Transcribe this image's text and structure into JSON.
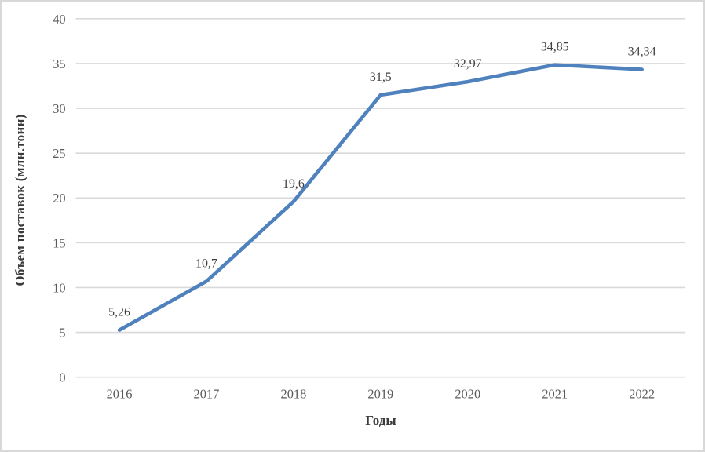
{
  "chart_data": {
    "type": "line",
    "title": "",
    "categories": [
      "2016",
      "2017",
      "2018",
      "2019",
      "2020",
      "2021",
      "2022"
    ],
    "series": [
      {
        "name": "Объем поставок",
        "values": [
          5.26,
          10.7,
          19.6,
          31.5,
          32.97,
          34.85,
          34.34
        ],
        "data_labels": [
          "5,26",
          "10,7",
          "19,6",
          "31,5",
          "32,97",
          "34,85",
          "34,34"
        ]
      }
    ],
    "xlabel": "Годы",
    "ylabel": "Объем поставок (млн.тонн)",
    "ylim": [
      0,
      40
    ],
    "yticks": [
      0,
      5,
      10,
      15,
      20,
      25,
      30,
      35,
      40
    ],
    "ytick_labels": [
      "0",
      "5",
      "10",
      "15",
      "20",
      "25",
      "30",
      "35",
      "40"
    ],
    "grid": "horizontal",
    "legend_position": "none"
  },
  "colors": {
    "line": "#4F81BD",
    "gridline": "#D9D9D9",
    "axis_line": "#D9D9D9",
    "tick_label": "#595959",
    "data_label": "#404040",
    "axis_title": "#3B3B3B",
    "frame_border": "#D8D8D8",
    "background": "#FFFFFF"
  }
}
